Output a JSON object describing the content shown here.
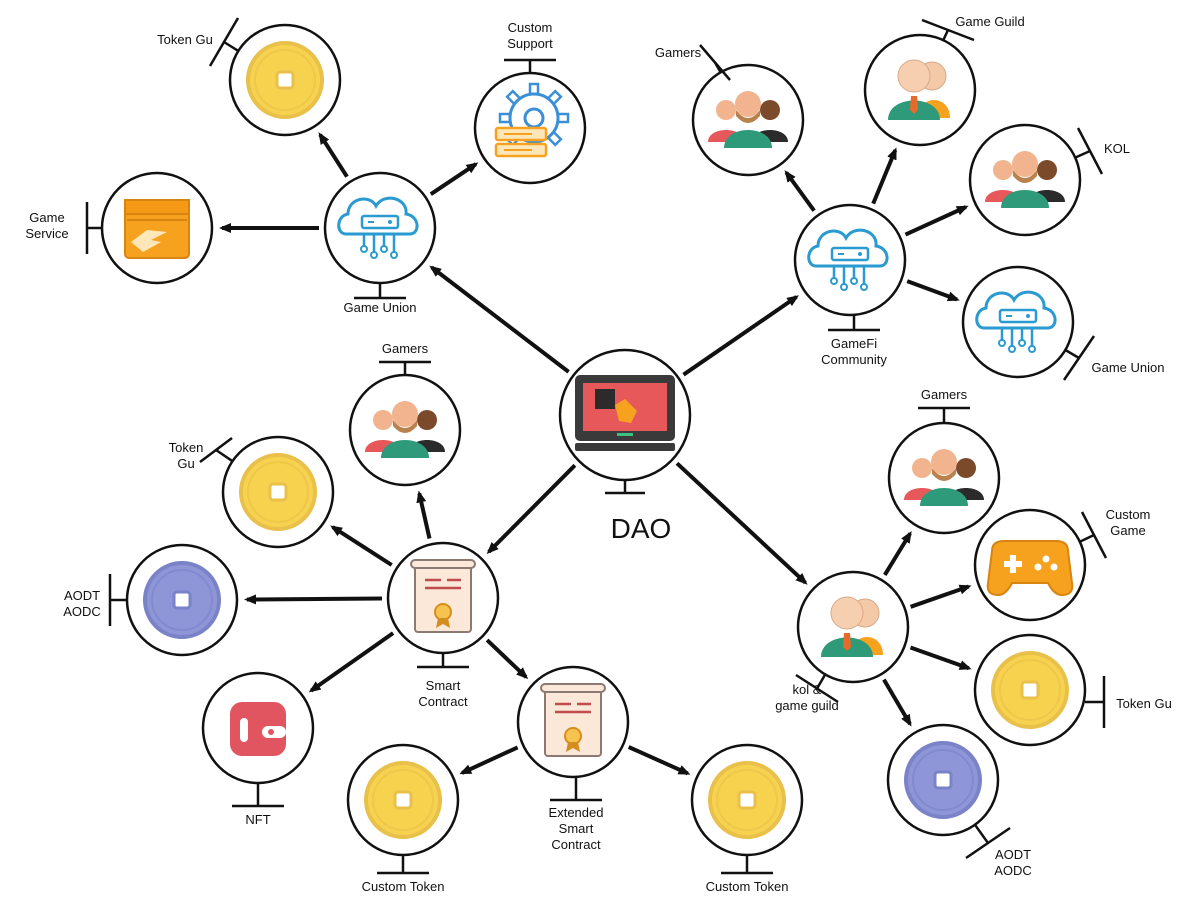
{
  "colors": {
    "line": "#111111",
    "coin_gold": "#f7d24f",
    "coin_purple": "#8f96d8",
    "cloud_blue": "#2a9bd1",
    "person_green": "#2f9a7a",
    "monitor_red": "#e7585b",
    "orange": "#f7a21e"
  },
  "center": {
    "label": "DAO",
    "icon": "monitor-hand-icon"
  },
  "nodes": {
    "game_union_left": {
      "label_lines": [
        "Game Union"
      ],
      "icon": "cloud-server-icon"
    },
    "token_gu_top": {
      "label_lines": [
        "Token Gu"
      ],
      "icon": "gold-coin-icon"
    },
    "custom_support": {
      "label_lines": [
        "Custom",
        "Support"
      ],
      "icon": "gear-server-icon"
    },
    "game_service": {
      "label_lines": [
        "Game",
        "Service"
      ],
      "icon": "handshake-box-icon"
    },
    "gamefi_community": {
      "label_lines": [
        "GameFi",
        "Community"
      ],
      "icon": "cloud-server-icon"
    },
    "gamers_top": {
      "label_lines": [
        "Gamers"
      ],
      "icon": "people-group-icon"
    },
    "game_guild": {
      "label_lines": [
        "Game Guild"
      ],
      "icon": "user-pair-icon"
    },
    "kol": {
      "label_lines": [
        "KOL"
      ],
      "icon": "people-group-icon"
    },
    "game_union_right": {
      "label_lines": [
        "Game Union"
      ],
      "icon": "cloud-server-icon"
    },
    "smart_contract": {
      "label_lines": [
        "Smart",
        "Contract"
      ],
      "icon": "contract-scroll-icon"
    },
    "gamers_mid_left": {
      "label_lines": [
        "Gamers"
      ],
      "icon": "people-group-icon"
    },
    "token_gu_left": {
      "label_lines": [
        "Token",
        "Gu"
      ],
      "icon": "gold-coin-icon"
    },
    "aodt_left": {
      "label_lines": [
        "AODT",
        "AODC"
      ],
      "icon": "purple-coin-icon"
    },
    "nft": {
      "label_lines": [
        "NFT"
      ],
      "icon": "wallet-icon"
    },
    "extended_contract": {
      "label_lines": [
        "Extended",
        "Smart",
        "Contract"
      ],
      "icon": "contract-scroll-icon"
    },
    "custom_token_left": {
      "label_lines": [
        "Custom Token"
      ],
      "icon": "gold-coin-icon"
    },
    "custom_token_right": {
      "label_lines": [
        "Custom Token"
      ],
      "icon": "gold-coin-icon"
    },
    "kol_guild": {
      "label_lines": [
        "kol &",
        "game guild"
      ],
      "icon": "user-pair-icon"
    },
    "gamers_right": {
      "label_lines": [
        "Gamers"
      ],
      "icon": "people-group-icon"
    },
    "custom_game": {
      "label_lines": [
        "Custom",
        "Game"
      ],
      "icon": "gamepad-icon"
    },
    "token_gu_right": {
      "label_lines": [
        "Token Gu"
      ],
      "icon": "gold-coin-icon"
    },
    "aodt_right": {
      "label_lines": [
        "AODT",
        "AODC"
      ],
      "icon": "purple-coin-icon"
    }
  },
  "edges": [
    {
      "from": "center",
      "to": "game_union_left"
    },
    {
      "from": "center",
      "to": "gamefi_community"
    },
    {
      "from": "center",
      "to": "smart_contract"
    },
    {
      "from": "center",
      "to": "kol_guild"
    },
    {
      "from": "game_union_left",
      "to": "token_gu_top"
    },
    {
      "from": "game_union_left",
      "to": "custom_support"
    },
    {
      "from": "game_union_left",
      "to": "game_service"
    },
    {
      "from": "gamefi_community",
      "to": "gamers_top"
    },
    {
      "from": "gamefi_community",
      "to": "game_guild"
    },
    {
      "from": "gamefi_community",
      "to": "kol"
    },
    {
      "from": "gamefi_community",
      "to": "game_union_right"
    },
    {
      "from": "smart_contract",
      "to": "gamers_mid_left"
    },
    {
      "from": "smart_contract",
      "to": "token_gu_left"
    },
    {
      "from": "smart_contract",
      "to": "aodt_left"
    },
    {
      "from": "smart_contract",
      "to": "nft"
    },
    {
      "from": "smart_contract",
      "to": "extended_contract"
    },
    {
      "from": "extended_contract",
      "to": "custom_token_left"
    },
    {
      "from": "extended_contract",
      "to": "custom_token_right"
    },
    {
      "from": "kol_guild",
      "to": "gamers_right"
    },
    {
      "from": "kol_guild",
      "to": "custom_game"
    },
    {
      "from": "kol_guild",
      "to": "token_gu_right"
    },
    {
      "from": "kol_guild",
      "to": "aodt_right"
    }
  ]
}
